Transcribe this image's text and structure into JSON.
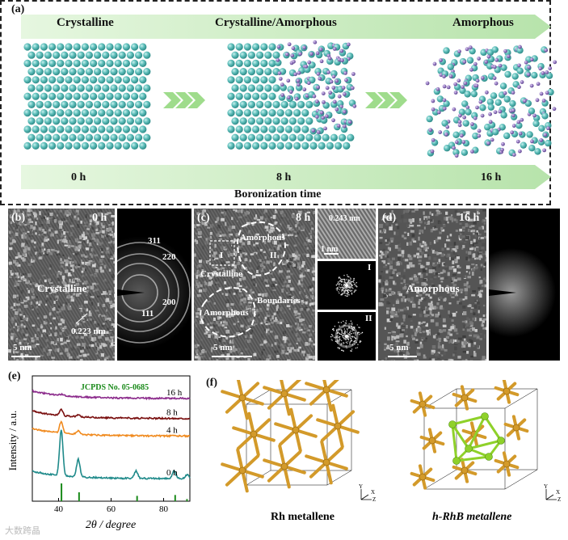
{
  "panel_a": {
    "label": "(a)",
    "phases": [
      "Crystalline",
      "Crystalline/Amorphous",
      "Amorphous"
    ],
    "times": [
      "0 h",
      "8 h",
      "16 h"
    ],
    "axis_title": "Boronization time",
    "colors": {
      "rh_atom": "#5fbfbb",
      "b_atom": "#9a7fc4",
      "arrow_band": "#c9ecc0"
    }
  },
  "panel_b": {
    "label": "(b)",
    "time": "0 h",
    "phase": "Crystalline",
    "d_spacing": "0.223 nm",
    "scale": "5 nm",
    "saed_rings": [
      "311",
      "220",
      "200",
      "111"
    ]
  },
  "panel_c": {
    "label": "(c)",
    "time": "8 h",
    "region_I": "I",
    "region_II": "II",
    "amorphous_top": "Amorphous",
    "amorphous_bottom": "Amorphous",
    "crystalline": "Crystalline",
    "boundaries": "Boundaries",
    "scale": "5 nm",
    "inset_d": "0.243 nm",
    "inset_scale": "1 nm",
    "fft_I": "I",
    "fft_II": "II"
  },
  "panel_d": {
    "label": "(d)",
    "time": "16 h",
    "phase": "Amorphous",
    "scale": "5 nm"
  },
  "panel_e": {
    "label": "(e)",
    "reference": "JCPDS No. 05-0685",
    "ylabel": "Intensity / a.u.",
    "xlabel": "2θ / degree",
    "ticks": [
      "40",
      "60",
      "80"
    ],
    "chart_data": {
      "type": "line",
      "xlim": [
        30,
        90
      ],
      "series": [
        {
          "name": "16 h",
          "color": "#8b2a8b",
          "offset": 0.82,
          "peaks": [
            [
              41,
              0.01
            ]
          ]
        },
        {
          "name": "8 h",
          "color": "#7a1010",
          "offset": 0.66,
          "peaks": [
            [
              41,
              0.05
            ],
            [
              47.5,
              0.015
            ]
          ]
        },
        {
          "name": "4 h",
          "color": "#f08a1e",
          "offset": 0.52,
          "peaks": [
            [
              41,
              0.09
            ],
            [
              47.5,
              0.03
            ]
          ]
        },
        {
          "name": "0 h",
          "color": "#1f8a8a",
          "offset": 0.18,
          "peaks": [
            [
              41,
              0.36
            ],
            [
              47.5,
              0.14
            ],
            [
              69.5,
              0.06
            ],
            [
              84,
              0.06
            ],
            [
              89,
              0.03
            ]
          ]
        }
      ],
      "reference_lines": [
        {
          "x": 41.1,
          "h": 1.0
        },
        {
          "x": 47.8,
          "h": 0.5
        },
        {
          "x": 69.9,
          "h": 0.3
        },
        {
          "x": 84.4,
          "h": 0.35
        },
        {
          "x": 88.9,
          "h": 0.12
        }
      ]
    }
  },
  "panel_f": {
    "label": "(f)",
    "structures": [
      "Rh metallene",
      "h-RhB metallene"
    ],
    "axes": {
      "y": "Y",
      "x": "X",
      "z": "Z"
    },
    "colors": {
      "rh": "#d39a2a",
      "b": "#8fd12a"
    }
  },
  "watermark": "大数跨晶"
}
